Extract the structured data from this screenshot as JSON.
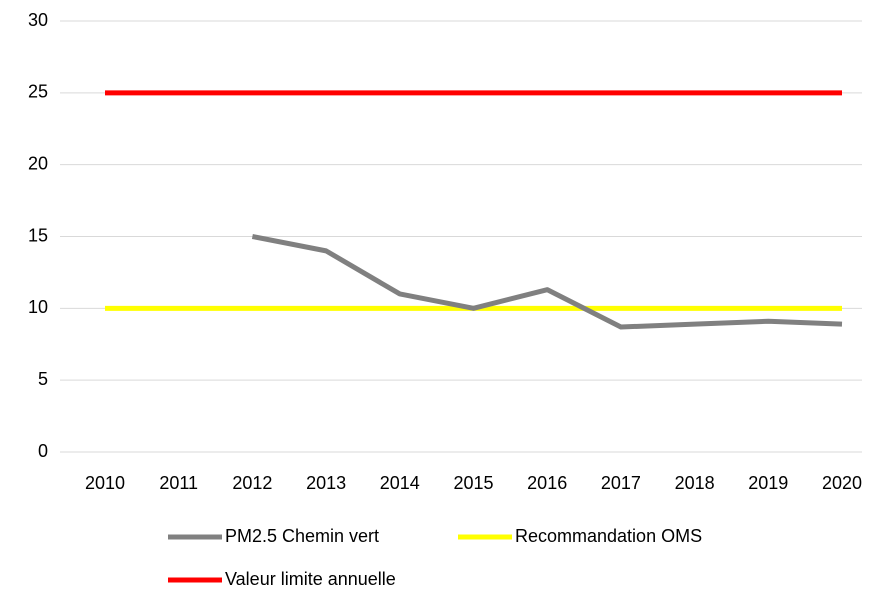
{
  "chart_data": {
    "type": "line",
    "categories": [
      "2010",
      "2011",
      "2012",
      "2013",
      "2014",
      "2015",
      "2016",
      "2017",
      "2018",
      "2019",
      "2020"
    ],
    "series": [
      {
        "name": "PM2.5 Chemin vert",
        "color": "#808080",
        "values": [
          null,
          null,
          15,
          14,
          11,
          10,
          11.3,
          8.7,
          8.9,
          9.1,
          8.9
        ]
      },
      {
        "name": "Recommandation OMS",
        "color": "#ffff00",
        "values": [
          10,
          10,
          10,
          10,
          10,
          10,
          10,
          10,
          10,
          10,
          10
        ]
      },
      {
        "name": "Valeur limite annuelle",
        "color": "#ff0000",
        "values": [
          25,
          25,
          25,
          25,
          25,
          25,
          25,
          25,
          25,
          25,
          25
        ]
      }
    ],
    "ylim": [
      0,
      30
    ],
    "yticks": [
      0,
      5,
      10,
      15,
      20,
      25,
      30
    ],
    "grid": true,
    "legend": "bottom"
  }
}
